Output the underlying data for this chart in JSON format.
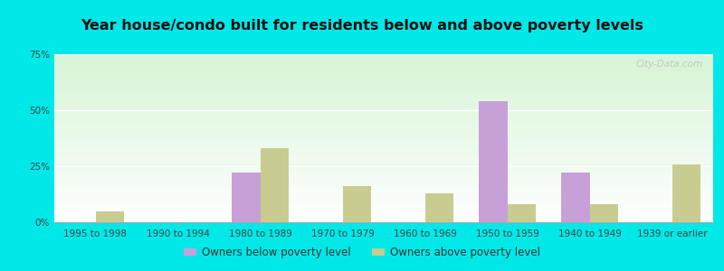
{
  "title": "Year house/condo built for residents below and above poverty levels",
  "categories": [
    "1995 to 1998",
    "1990 to 1994",
    "1980 to 1989",
    "1970 to 1979",
    "1960 to 1969",
    "1950 to 1959",
    "1940 to 1949",
    "1939 or earlier"
  ],
  "below_poverty": [
    0,
    0,
    22,
    0,
    0,
    54,
    22,
    0
  ],
  "above_poverty": [
    5,
    0,
    33,
    16,
    13,
    8,
    8,
    26
  ],
  "below_color": "#c8a0d8",
  "above_color": "#c8cc90",
  "ylim": [
    0,
    75
  ],
  "yticks": [
    0,
    25,
    50,
    75
  ],
  "ytick_labels": [
    "0%",
    "25%",
    "50%",
    "75%"
  ],
  "legend_below": "Owners below poverty level",
  "legend_above": "Owners above poverty level",
  "bg_outer": "#00e8e8",
  "watermark": "City-Data.com",
  "bar_width": 0.35,
  "title_fontsize": 11.5,
  "tick_fontsize": 7.5,
  "legend_fontsize": 8.5
}
